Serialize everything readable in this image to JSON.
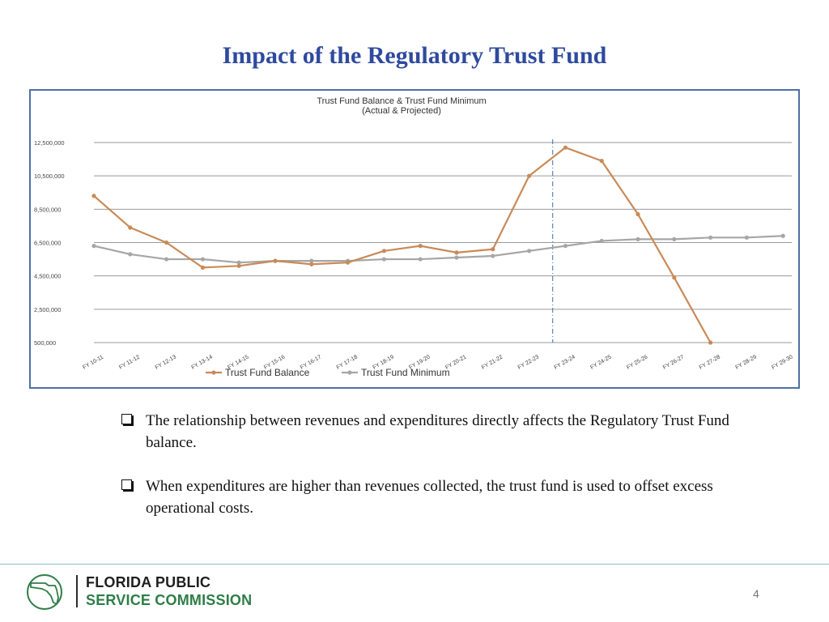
{
  "slide": {
    "title": "Impact of the Regulatory Trust Fund",
    "page_number": "4"
  },
  "bullets": [
    "The relationship between revenues and expenditures directly affects the Regulatory Trust Fund balance.",
    "When expenditures are higher than revenues collected, the trust fund is used to offset excess operational costs."
  ],
  "logo": {
    "line1": "FLORIDA PUBLIC",
    "line2": "SERVICE COMMISSION",
    "icon": "florida-state-seal-icon",
    "colors": {
      "primary": "#2E7D46",
      "dark": "#1f1f1f"
    }
  },
  "chart_data": {
    "type": "line",
    "title": "Trust Fund Balance & Trust Fund Minimum",
    "subtitle": "(Actual & Projected)",
    "xlabel": "",
    "ylabel": "",
    "categories": [
      "FY 10-11",
      "FY 11-12",
      "FY 12-13",
      "FY 13-14",
      "FY 14-15",
      "FY 15-16",
      "FY 16-17",
      "FY 17-18",
      "FY 18-19",
      "FY 19-20",
      "FY 20-21",
      "FY 21-22",
      "FY 22-23",
      "FY 23-24",
      "FY 24-25",
      "FY 25-26",
      "FY 26-27",
      "FY 27-28",
      "FY 28-29",
      "FY 29-30"
    ],
    "y_ticks": [
      500000,
      2500000,
      4500000,
      6500000,
      8500000,
      10500000,
      12500000
    ],
    "y_tick_labels": [
      "500,000",
      "2,500,000",
      "4,500,000",
      "6,500,000",
      "8,500,000",
      "10,500,000",
      "12,500,000"
    ],
    "ylim": [
      500000,
      12500000
    ],
    "grid": true,
    "legend_position": "bottom",
    "divider_after_category": "FY 22-23",
    "series": [
      {
        "name": "Trust Fund Balance",
        "color": "#C98A57",
        "values": [
          9300000,
          7400000,
          6500000,
          5000000,
          5100000,
          5400000,
          5200000,
          5300000,
          6000000,
          6300000,
          5900000,
          6100000,
          10500000,
          12200000,
          11400000,
          8200000,
          4400000,
          500000,
          null,
          null
        ]
      },
      {
        "name": "Trust Fund Minimum",
        "color": "#A6A6A6",
        "values": [
          6300000,
          5800000,
          5500000,
          5500000,
          5300000,
          5400000,
          5400000,
          5400000,
          5500000,
          5500000,
          5600000,
          5700000,
          6000000,
          6300000,
          6600000,
          6700000,
          6700000,
          6800000,
          6800000,
          6900000
        ]
      }
    ]
  }
}
